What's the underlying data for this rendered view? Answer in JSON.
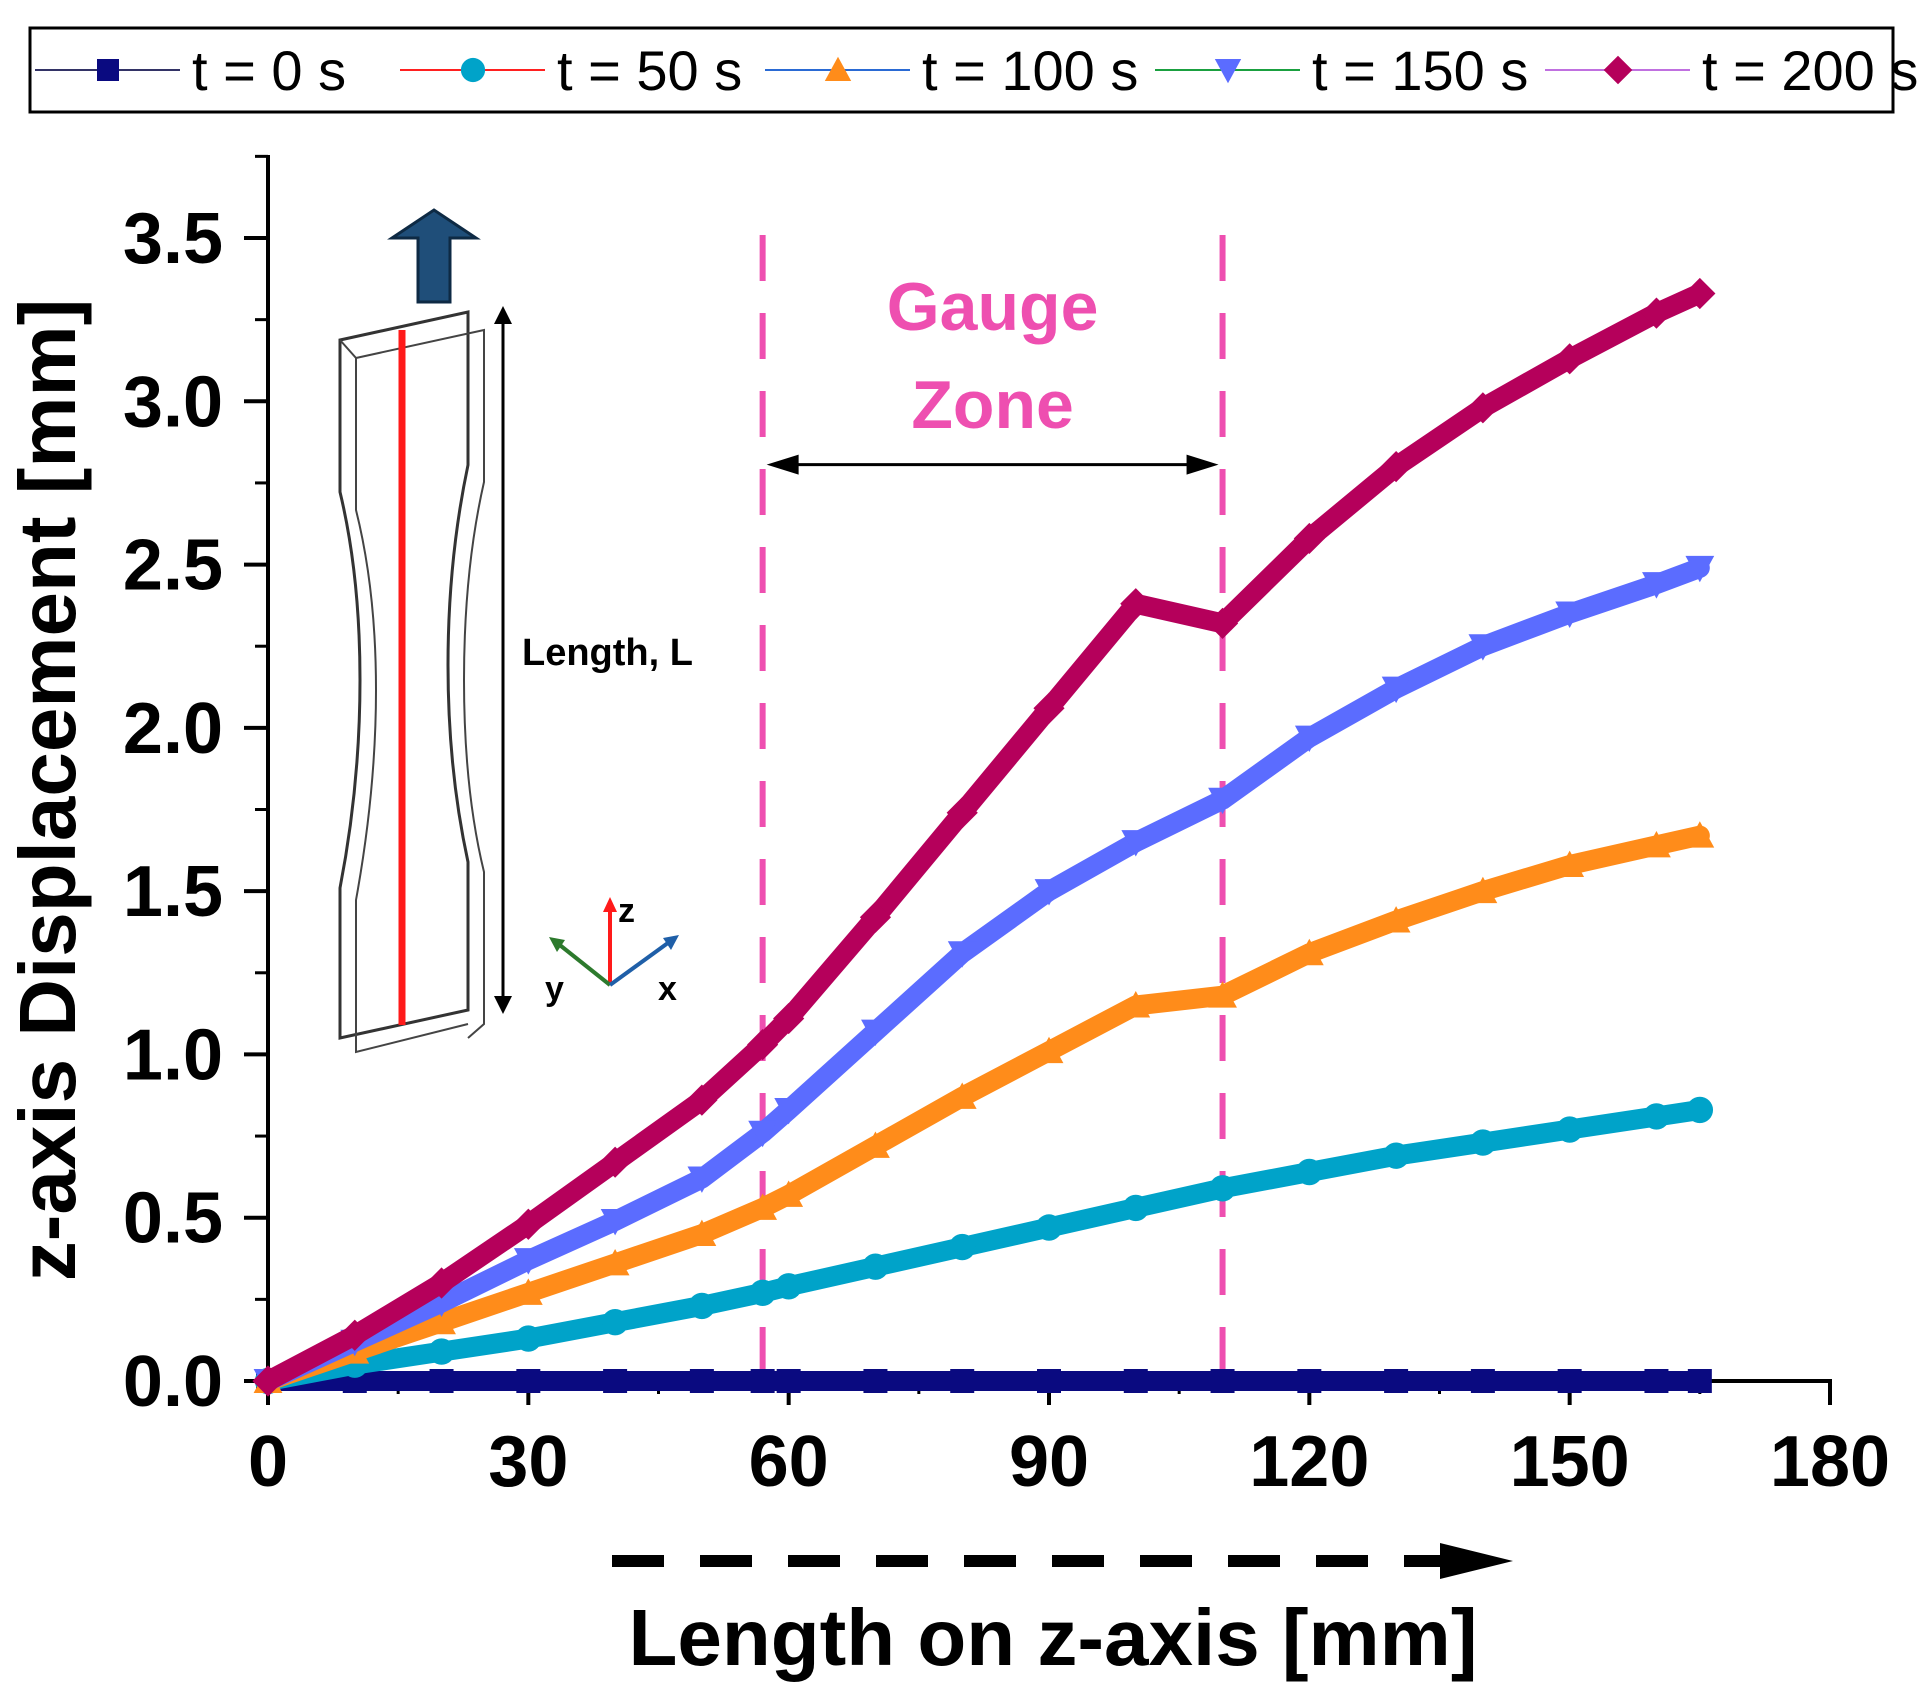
{
  "chart_data": {
    "type": "line",
    "title": "",
    "xlabel": "Length on z-axis [mm]",
    "ylabel": "z-axis Displacement [mm]",
    "xlim": [
      0,
      180
    ],
    "ylim": [
      0,
      3.75
    ],
    "x_ticks": [
      "0",
      "30",
      "60",
      "90",
      "120",
      "150",
      "180"
    ],
    "y_ticks": [
      "0.0",
      "0.5",
      "1.0",
      "1.5",
      "2.0",
      "2.5",
      "3.0",
      "3.5"
    ],
    "grid": false,
    "legend_position": "top",
    "x": [
      0,
      10,
      20,
      30,
      40,
      50,
      57,
      60,
      70,
      80,
      90,
      100,
      110,
      120,
      130,
      140,
      150,
      160,
      165
    ],
    "series": [
      {
        "name": "t = 0 s",
        "marker": "square",
        "color": "#0a0a80",
        "line_color": "#333366",
        "values": [
          0,
          0,
          0,
          0,
          0,
          0,
          0,
          0,
          0,
          0,
          0,
          0,
          0,
          0,
          0,
          0,
          0,
          0,
          0
        ]
      },
      {
        "name": "t = 50 s",
        "marker": "circle",
        "color": "#00a3c9",
        "line_color": "#ff2020",
        "values": [
          0,
          0.05,
          0.09,
          0.13,
          0.18,
          0.23,
          0.27,
          0.29,
          0.35,
          0.41,
          0.47,
          0.53,
          0.59,
          0.64,
          0.69,
          0.73,
          0.77,
          0.81,
          0.83
        ]
      },
      {
        "name": "t = 100 s",
        "marker": "triangle-up",
        "color": "#ff8c1a",
        "line_color": "#2a6ad4",
        "values": [
          0,
          0.09,
          0.18,
          0.27,
          0.36,
          0.45,
          0.53,
          0.57,
          0.72,
          0.87,
          1.01,
          1.15,
          1.18,
          1.31,
          1.41,
          1.5,
          1.58,
          1.64,
          1.67
        ]
      },
      {
        "name": "t = 150 s",
        "marker": "triangle-down",
        "color": "#5b6cff",
        "line_color": "#1aa040",
        "values": [
          0,
          0.12,
          0.24,
          0.37,
          0.49,
          0.62,
          0.76,
          0.83,
          1.07,
          1.31,
          1.5,
          1.65,
          1.78,
          1.97,
          2.12,
          2.25,
          2.35,
          2.44,
          2.49
        ]
      },
      {
        "name": "t = 200 s",
        "marker": "diamond",
        "color": "#b5005b",
        "line_color": "#c070e0",
        "values": [
          0,
          0.14,
          0.3,
          0.48,
          0.67,
          0.86,
          1.03,
          1.11,
          1.42,
          1.74,
          2.06,
          2.38,
          2.32,
          2.58,
          2.8,
          2.98,
          3.13,
          3.27,
          3.33
        ]
      }
    ],
    "annotations": {
      "gauge_zone": {
        "label_line1": "Gauge",
        "label_line2": "Zone",
        "x_start": 57,
        "x_end": 110,
        "y_arrow": 2.8,
        "color": "#ee4fb0"
      },
      "inset": {
        "length_label": "Length, L",
        "axis_z": "z",
        "axis_y": "y",
        "axis_x": "x"
      }
    }
  }
}
